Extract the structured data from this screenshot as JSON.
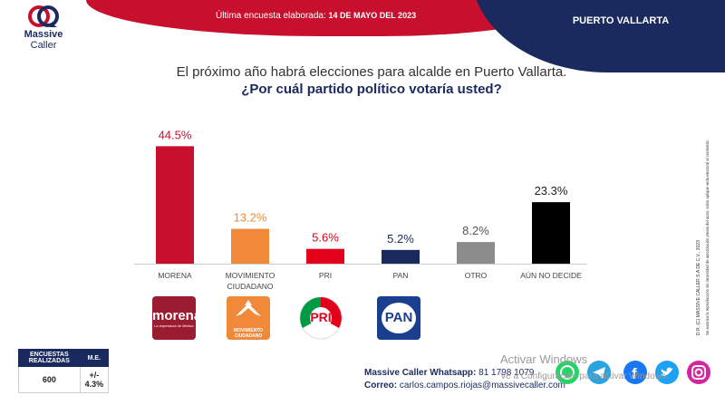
{
  "header": {
    "survey_label": "Última encuesta elaborada:",
    "survey_date": "14 DE MAYO DEL 2023",
    "city": "PUERTO VALLARTA",
    "brand_line1": "Massive",
    "brand_line2": "Caller"
  },
  "question": {
    "line1": "El próximo año habrá elecciones para alcalde en Puerto Vallarta.",
    "line2": "¿Por cuál partido político votaría usted?"
  },
  "chart_data": {
    "type": "bar",
    "categories": [
      "MORENA",
      "MOVIMIENTO CIUDADANO",
      "PRI",
      "PAN",
      "OTRO",
      "AÚN NO DECIDE"
    ],
    "category_lines": [
      [
        "MORENA"
      ],
      [
        "MOVIMIENTO",
        "CIUDADANO"
      ],
      [
        "PRI"
      ],
      [
        "PAN"
      ],
      [
        "OTRO"
      ],
      [
        "AÚN NO DECIDE"
      ]
    ],
    "values": [
      44.5,
      13.2,
      5.6,
      5.2,
      8.2,
      23.3
    ],
    "value_labels": [
      "44.5%",
      "13.2%",
      "5.6%",
      "5.2%",
      "8.2%",
      "23.3%"
    ],
    "colors": [
      "#c8102e",
      "#f08a3a",
      "#e3001b",
      "#1b2a5e",
      "#8c8c8c",
      "#000000"
    ],
    "label_colors": [
      "#c8102e",
      "#f08a3a",
      "#e3001b",
      "#1b2a5e",
      "#555555",
      "#222222"
    ],
    "ylim": [
      0,
      46
    ],
    "grid": false
  },
  "party_logos": {
    "morena": {
      "name": "morena",
      "tagline": "La esperanza de México"
    },
    "mc": {
      "name": "MOVIMIENTO CIUDADANO"
    },
    "pri": {
      "name": "PRI"
    },
    "pan": {
      "name": "PAN"
    }
  },
  "methodology": {
    "col1_header": "ENCUESTAS REALIZADAS",
    "col2_header": "M.E.",
    "surveys": "600",
    "margin": "+/- 4.3%"
  },
  "contact": {
    "whatsapp_label": "Massive Caller Whatsapp:",
    "whatsapp_number": "81 1798 1079",
    "email_label": "Correo:",
    "email": "carlos.campos.riojas@massivecaller.com"
  },
  "social_icons": [
    "whatsapp-icon",
    "telegram-icon",
    "facebook-icon",
    "twitter-icon",
    "instagram-icon"
  ],
  "watermark": {
    "line1": "Activar Windows",
    "line2": "Ve a Configuración para activar Windows."
  },
  "legal": {
    "line1": "D.R. (C) MASSIVE CALLER S.A DE C.V., 2023",
    "line2": "Se autoriza la reproducción sin necesidad de autorización previa del autor, salvo aplique veda electoral al contenido."
  }
}
